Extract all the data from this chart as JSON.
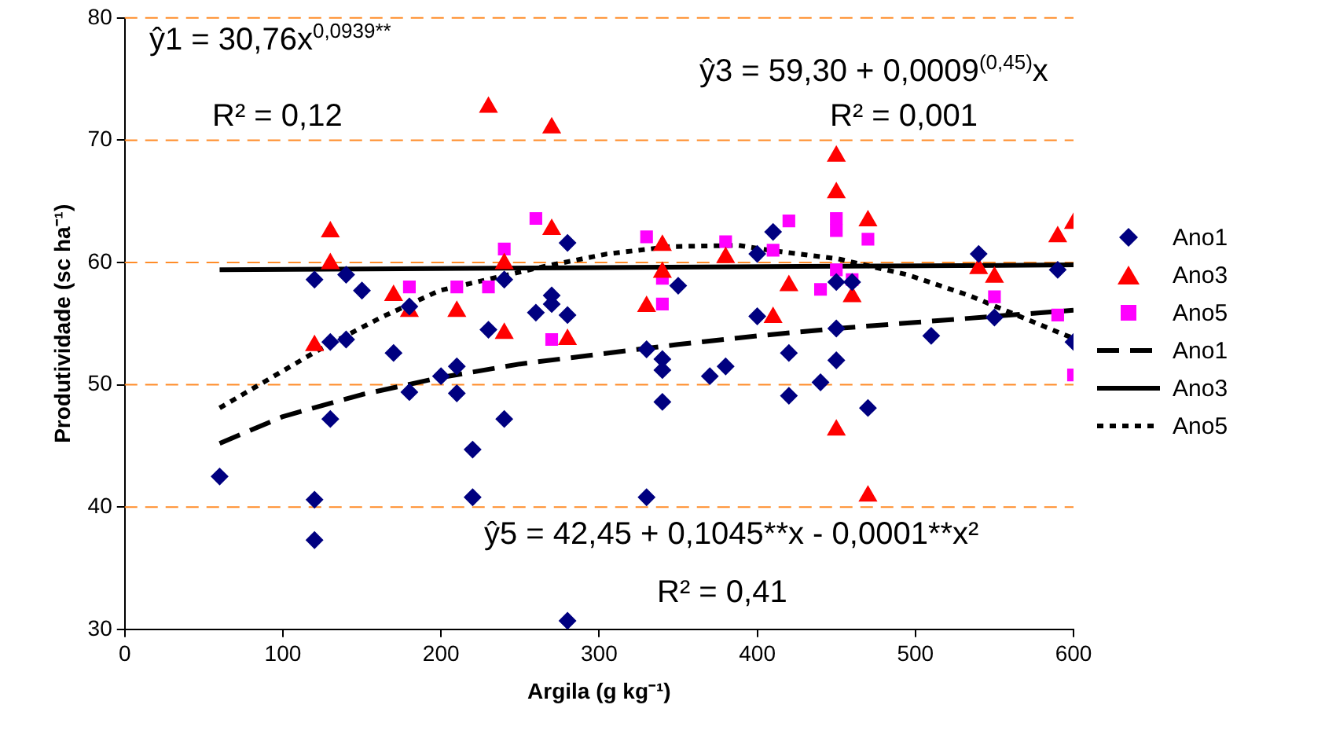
{
  "chart_data": {
    "type": "scatter",
    "xlabel": "Argila (g kg⁻¹)",
    "ylabel": "Produtividade (sc ha⁻¹)",
    "xlim": [
      0,
      600
    ],
    "xticks": [
      0,
      100,
      200,
      300,
      400,
      500,
      600
    ],
    "ylim": [
      30,
      80
    ],
    "yticks": [
      30,
      40,
      50,
      60,
      70,
      80
    ],
    "grid": "y",
    "legend": "right",
    "annotations": [
      "ŷ1 = 30,76x$^{0,0939**}$",
      "R² = 0,12",
      "ŷ3 = 59,30 + 0,0009$^{(0,45)}$x",
      "R² = 0,001",
      "ŷ5 = 42,45 + 0,1045**x - 0,0001**x²",
      "R² = 0,41"
    ],
    "series": [
      {
        "name": "Ano1",
        "type": "scatter",
        "marker": "diamond",
        "color": "#000080",
        "x": [
          60,
          120,
          120,
          120,
          130,
          140,
          130,
          140,
          150,
          170,
          180,
          180,
          200,
          210,
          210,
          220,
          220,
          230,
          240,
          240,
          260,
          270,
          270,
          280,
          280,
          280,
          330,
          330,
          340,
          340,
          340,
          350,
          370,
          380,
          400,
          400,
          410,
          420,
          420,
          440,
          450,
          450,
          450,
          460,
          470,
          510,
          540,
          550,
          590,
          600
        ],
        "values": [
          42.5,
          40.6,
          37.3,
          58.6,
          53.5,
          53.7,
          47.2,
          59.0,
          57.7,
          52.6,
          49.4,
          56.4,
          50.7,
          51.5,
          49.3,
          44.7,
          40.8,
          54.5,
          47.2,
          58.6,
          55.9,
          57.3,
          56.6,
          61.6,
          55.7,
          30.7,
          52.9,
          40.8,
          52.1,
          51.2,
          48.6,
          58.1,
          50.7,
          51.5,
          60.7,
          55.6,
          62.5,
          52.6,
          49.1,
          50.2,
          58.4,
          54.6,
          52.0,
          58.4,
          48.1,
          54.0,
          60.7,
          55.5,
          59.4,
          53.5
        ]
      },
      {
        "name": "Ano3",
        "type": "scatter",
        "marker": "triangle",
        "color": "#ff0000",
        "x": [
          130,
          130,
          120,
          170,
          180,
          210,
          230,
          270,
          240,
          240,
          270,
          280,
          340,
          340,
          330,
          380,
          410,
          420,
          450,
          450,
          450,
          470,
          470,
          460,
          540,
          550,
          590,
          600
        ],
        "values": [
          62.5,
          59.9,
          53.2,
          57.3,
          56.0,
          56.0,
          72.7,
          71.0,
          59.9,
          54.2,
          62.7,
          53.7,
          61.4,
          59.2,
          56.4,
          60.4,
          55.5,
          58.1,
          68.7,
          65.7,
          46.3,
          63.4,
          40.9,
          57.2,
          59.5,
          58.8,
          62.1,
          63.2
        ]
      },
      {
        "name": "Ano5",
        "type": "scatter",
        "marker": "square",
        "color": "#ff00ff",
        "x": [
          180,
          210,
          230,
          240,
          260,
          270,
          330,
          340,
          340,
          380,
          410,
          420,
          440,
          450,
          450,
          450,
          460,
          470,
          550,
          590,
          600
        ],
        "values": [
          58.0,
          58.0,
          58.0,
          61.1,
          63.6,
          53.7,
          62.1,
          58.7,
          56.6,
          61.7,
          61.0,
          63.4,
          57.8,
          63.6,
          62.6,
          59.4,
          58.6,
          61.9,
          57.2,
          55.7,
          50.8
        ]
      },
      {
        "name": "Ano1",
        "type": "line",
        "marker": "none",
        "line_style": "dashed",
        "color": "#000000",
        "x": [
          60,
          100,
          150,
          200,
          250,
          300,
          350,
          400,
          450,
          500,
          550,
          600
        ],
        "values": [
          45.2,
          47.4,
          49.2,
          50.6,
          51.7,
          52.5,
          53.3,
          54.0,
          54.6,
          55.1,
          55.6,
          56.1
        ]
      },
      {
        "name": "Ano3",
        "type": "line",
        "marker": "none",
        "line_style": "solid",
        "color": "#000000",
        "x": [
          60,
          600
        ],
        "values": [
          59.4,
          59.8
        ]
      },
      {
        "name": "Ano5",
        "type": "line",
        "marker": "none",
        "line_style": "dotted",
        "color": "#000000",
        "x": [
          60,
          122,
          162,
          199,
          266,
          305,
          345,
          388,
          408,
          451,
          495,
          534,
          594,
          600
        ],
        "values": [
          48.1,
          52.8,
          55.5,
          57.7,
          59.7,
          60.7,
          61.3,
          61.4,
          61.0,
          60.3,
          59.0,
          57.3,
          54.1,
          53.8
        ]
      }
    ]
  }
}
